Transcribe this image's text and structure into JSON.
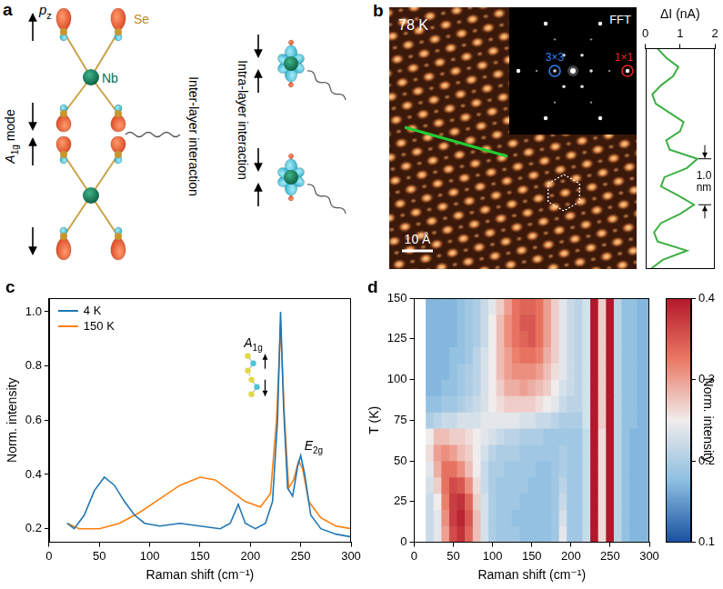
{
  "panel_a": {
    "letter": "a",
    "p_z": {
      "base": "p",
      "sub": "z"
    },
    "se": "Se",
    "nb": "Nb",
    "mode": {
      "base": "A",
      "sub": "1g",
      "after": " mode"
    },
    "inter": "Inter-layer interaction",
    "intra": "Intra-layer interaction"
  },
  "panel_b": {
    "letter": "b",
    "temperature": "78 K",
    "fft": "FFT",
    "fft_peaks": [
      {
        "label": "3×3",
        "color": "#2f80ed"
      },
      {
        "label": "1×1",
        "color": "#e8231c"
      }
    ],
    "scale_bar": "10 Å"
  },
  "chart_data": [
    {
      "type": "line",
      "x_label": "ΔI (nA)",
      "xlim": [
        0,
        2
      ],
      "xticks": [
        0,
        1,
        2
      ],
      "ylim": [
        0,
        4.8
      ],
      "tick_labels": "x",
      "grid": false,
      "series": [
        {
          "color": "#3cb043",
          "x": [
            0.15,
            0.5,
            1.2,
            0.35,
            0.25,
            0.45,
            1.0,
            1.4,
            0.95,
            0.45,
            0.55,
            1.2,
            1.5,
            0.7,
            0.6,
            1.0,
            1.1,
            0.7,
            0.3,
            0.2,
            0.45,
            0.8,
            0.95,
            0.6,
            0.35
          ],
          "y": [
            0,
            0.2,
            0.4,
            0.6,
            0.8,
            1.0,
            1.2,
            1.4,
            1.6,
            1.8,
            2.0,
            2.2,
            2.4,
            2.6,
            2.8,
            3.0,
            3.2,
            3.4,
            3.6,
            3.8,
            4.0,
            4.2,
            4.4,
            4.6,
            4.8
          ]
        }
      ],
      "annotation": {
        "text": "1.0 nm",
        "y": [
          1.4,
          2.4
        ]
      }
    },
    {
      "letter": "c",
      "type": "line",
      "x_label": "Raman shift (cm⁻¹)",
      "y_label": "Norm. intensity",
      "xlim": [
        0,
        300
      ],
      "xticks": [
        0,
        50,
        100,
        150,
        200,
        250,
        300
      ],
      "ylim": [
        0.15,
        1.05
      ],
      "yticks": [
        0.2,
        0.4,
        0.6,
        0.8,
        {
          "value": 1,
          "label": "1.0"
        }
      ],
      "legend": "upper left",
      "grid": false,
      "series": [
        {
          "name": "4 K",
          "color": "#1f77b4",
          "x": [
            18,
            25,
            35,
            45,
            55,
            65,
            75,
            85,
            95,
            110,
            130,
            150,
            170,
            180,
            188,
            195,
            205,
            215,
            222,
            227,
            230,
            233,
            237,
            242,
            247,
            250,
            254,
            260,
            270,
            285,
            300
          ],
          "values": [
            0.22,
            0.2,
            0.25,
            0.34,
            0.39,
            0.36,
            0.3,
            0.25,
            0.22,
            0.21,
            0.22,
            0.21,
            0.2,
            0.22,
            0.29,
            0.22,
            0.2,
            0.22,
            0.3,
            0.6,
            1.0,
            0.65,
            0.35,
            0.32,
            0.43,
            0.47,
            0.4,
            0.25,
            0.2,
            0.18,
            0.17
          ]
        },
        {
          "name": "150 K",
          "color": "#ff7f0e",
          "x": [
            18,
            30,
            50,
            70,
            90,
            110,
            130,
            150,
            165,
            180,
            195,
            210,
            220,
            226,
            230,
            234,
            238,
            243,
            248,
            252,
            258,
            270,
            285,
            300
          ],
          "values": [
            0.22,
            0.2,
            0.2,
            0.22,
            0.26,
            0.31,
            0.36,
            0.39,
            0.38,
            0.34,
            0.3,
            0.28,
            0.33,
            0.6,
            0.95,
            0.6,
            0.35,
            0.38,
            0.45,
            0.42,
            0.3,
            0.24,
            0.21,
            0.2
          ]
        }
      ],
      "peaks": [
        {
          "label": {
            "base": "A",
            "sub": "1g"
          },
          "x": 230
        },
        {
          "label": {
            "base": "E",
            "sub": "2g"
          },
          "x": 250
        }
      ]
    },
    {
      "letter": "d",
      "type": "heatmap",
      "x_label": "Raman shift (cm⁻¹)",
      "y_label": "T (K)",
      "xlim": [
        0,
        300
      ],
      "xticks": [
        0,
        50,
        100,
        150,
        200,
        250,
        300
      ],
      "ylim": [
        0,
        150
      ],
      "yticks": [
        0,
        25,
        50,
        75,
        100,
        125,
        150
      ],
      "grid": false,
      "x": [
        20,
        30,
        40,
        50,
        60,
        70,
        80,
        90,
        100,
        110,
        120,
        130,
        140,
        150,
        160,
        170,
        180,
        190,
        200,
        210,
        220,
        230,
        240,
        250,
        260,
        270,
        280,
        290,
        300
      ],
      "y": [
        5,
        15,
        25,
        35,
        45,
        55,
        65,
        75,
        85,
        95,
        105,
        115,
        125,
        135,
        145
      ],
      "cells": [
        [
          0.22,
          0.24,
          0.3,
          0.36,
          0.38,
          0.34,
          0.28,
          0.23,
          0.2,
          0.19,
          0.19,
          0.19,
          0.18,
          0.18,
          0.18,
          0.18,
          0.19,
          0.24,
          0.19,
          0.19,
          0.22,
          0.4,
          0.26,
          0.4,
          0.21,
          0.18,
          0.17,
          0.17,
          0.17
        ],
        [
          0.22,
          0.24,
          0.31,
          0.37,
          0.39,
          0.35,
          0.28,
          0.23,
          0.2,
          0.19,
          0.19,
          0.18,
          0.18,
          0.18,
          0.18,
          0.18,
          0.19,
          0.23,
          0.19,
          0.19,
          0.22,
          0.4,
          0.26,
          0.4,
          0.21,
          0.18,
          0.17,
          0.17,
          0.17
        ],
        [
          0.22,
          0.25,
          0.32,
          0.37,
          0.38,
          0.34,
          0.27,
          0.23,
          0.2,
          0.19,
          0.19,
          0.19,
          0.18,
          0.18,
          0.18,
          0.18,
          0.19,
          0.22,
          0.19,
          0.19,
          0.22,
          0.4,
          0.26,
          0.4,
          0.21,
          0.18,
          0.17,
          0.17,
          0.17
        ],
        [
          0.23,
          0.27,
          0.33,
          0.36,
          0.35,
          0.31,
          0.26,
          0.22,
          0.2,
          0.19,
          0.19,
          0.19,
          0.19,
          0.18,
          0.18,
          0.18,
          0.19,
          0.21,
          0.19,
          0.19,
          0.22,
          0.4,
          0.26,
          0.4,
          0.21,
          0.18,
          0.17,
          0.17,
          0.17
        ],
        [
          0.24,
          0.29,
          0.33,
          0.33,
          0.31,
          0.28,
          0.25,
          0.22,
          0.2,
          0.2,
          0.19,
          0.19,
          0.19,
          0.19,
          0.18,
          0.18,
          0.19,
          0.2,
          0.19,
          0.19,
          0.22,
          0.4,
          0.26,
          0.4,
          0.21,
          0.18,
          0.17,
          0.17,
          0.17
        ],
        [
          0.26,
          0.3,
          0.31,
          0.3,
          0.28,
          0.27,
          0.25,
          0.23,
          0.21,
          0.2,
          0.2,
          0.2,
          0.19,
          0.19,
          0.19,
          0.19,
          0.19,
          0.2,
          0.19,
          0.19,
          0.22,
          0.4,
          0.26,
          0.4,
          0.21,
          0.18,
          0.17,
          0.17,
          0.17
        ],
        [
          0.25,
          0.28,
          0.28,
          0.27,
          0.27,
          0.26,
          0.25,
          0.24,
          0.23,
          0.22,
          0.21,
          0.21,
          0.2,
          0.2,
          0.2,
          0.19,
          0.19,
          0.19,
          0.19,
          0.19,
          0.22,
          0.4,
          0.26,
          0.4,
          0.21,
          0.18,
          0.17,
          0.17,
          0.17
        ],
        [
          0.2,
          0.21,
          0.22,
          0.22,
          0.23,
          0.23,
          0.23,
          0.24,
          0.24,
          0.24,
          0.24,
          0.24,
          0.23,
          0.23,
          0.22,
          0.22,
          0.21,
          0.2,
          0.2,
          0.2,
          0.23,
          0.4,
          0.27,
          0.4,
          0.21,
          0.18,
          0.18,
          0.17,
          0.17
        ],
        [
          0.18,
          0.18,
          0.19,
          0.19,
          0.2,
          0.21,
          0.22,
          0.23,
          0.25,
          0.26,
          0.27,
          0.27,
          0.27,
          0.27,
          0.26,
          0.25,
          0.24,
          0.22,
          0.21,
          0.21,
          0.23,
          0.4,
          0.27,
          0.4,
          0.21,
          0.18,
          0.18,
          0.17,
          0.17
        ],
        [
          0.17,
          0.17,
          0.18,
          0.18,
          0.19,
          0.2,
          0.21,
          0.23,
          0.25,
          0.27,
          0.29,
          0.29,
          0.3,
          0.29,
          0.28,
          0.27,
          0.25,
          0.23,
          0.22,
          0.21,
          0.23,
          0.4,
          0.27,
          0.4,
          0.21,
          0.18,
          0.18,
          0.17,
          0.17
        ],
        [
          0.17,
          0.17,
          0.17,
          0.18,
          0.19,
          0.2,
          0.21,
          0.23,
          0.25,
          0.28,
          0.3,
          0.31,
          0.31,
          0.31,
          0.3,
          0.28,
          0.26,
          0.24,
          0.22,
          0.21,
          0.23,
          0.4,
          0.27,
          0.4,
          0.21,
          0.18,
          0.18,
          0.17,
          0.17
        ],
        [
          0.17,
          0.17,
          0.17,
          0.18,
          0.18,
          0.19,
          0.21,
          0.23,
          0.25,
          0.28,
          0.3,
          0.32,
          0.33,
          0.33,
          0.32,
          0.29,
          0.27,
          0.24,
          0.22,
          0.21,
          0.23,
          0.4,
          0.27,
          0.4,
          0.21,
          0.18,
          0.18,
          0.17,
          0.17
        ],
        [
          0.17,
          0.17,
          0.17,
          0.17,
          0.18,
          0.19,
          0.2,
          0.22,
          0.25,
          0.28,
          0.31,
          0.33,
          0.34,
          0.35,
          0.33,
          0.3,
          0.27,
          0.24,
          0.22,
          0.21,
          0.23,
          0.4,
          0.27,
          0.4,
          0.21,
          0.18,
          0.18,
          0.17,
          0.17
        ],
        [
          0.17,
          0.17,
          0.17,
          0.17,
          0.18,
          0.19,
          0.2,
          0.22,
          0.25,
          0.28,
          0.31,
          0.33,
          0.35,
          0.35,
          0.33,
          0.3,
          0.27,
          0.24,
          0.22,
          0.21,
          0.23,
          0.4,
          0.27,
          0.4,
          0.21,
          0.18,
          0.18,
          0.17,
          0.17
        ],
        [
          0.17,
          0.17,
          0.17,
          0.17,
          0.18,
          0.19,
          0.2,
          0.22,
          0.24,
          0.27,
          0.3,
          0.33,
          0.34,
          0.34,
          0.33,
          0.3,
          0.27,
          0.24,
          0.22,
          0.21,
          0.23,
          0.4,
          0.27,
          0.4,
          0.21,
          0.18,
          0.18,
          0.17,
          0.17
        ]
      ],
      "colorbar": {
        "label": "Norm. intensity",
        "lim": [
          0.1,
          0.4
        ],
        "ticks": [
          0.1,
          0.2,
          0.3,
          0.4
        ]
      }
    }
  ]
}
